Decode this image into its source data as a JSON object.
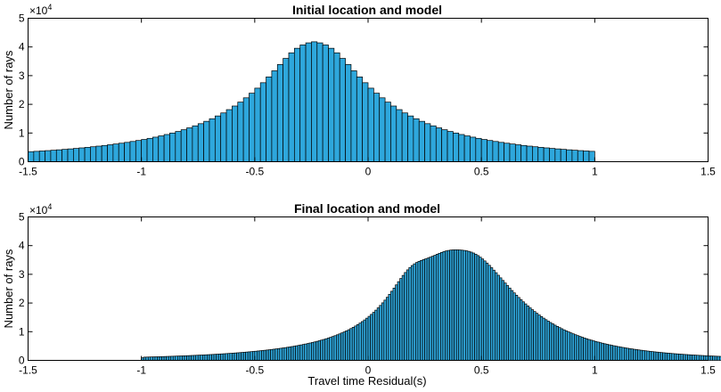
{
  "chart_data": [
    {
      "type": "bar",
      "title": "Initial location and model",
      "xlabel": "",
      "ylabel": "Number of rays",
      "y_exponent_label": "×10",
      "y_exponent_power": "4",
      "xlim": [
        -1.5,
        1.5
      ],
      "ylim": [
        0,
        50000
      ],
      "xticks": [
        "-1.5",
        "-1",
        "-0.5",
        "0",
        "0.5",
        "1",
        "1.5"
      ],
      "yticks": [
        "0",
        "1",
        "2",
        "3",
        "4",
        "5"
      ],
      "bar_color": "#2ea7dc",
      "bin_width": 0.025,
      "x_start": -1.5,
      "values": [
        3500,
        3616,
        3738,
        3866,
        4000,
        4146,
        4300,
        4463,
        4635,
        4817,
        5010,
        5214,
        5431,
        5661,
        5906,
        6166,
        6444,
        6739,
        7055,
        7393,
        7754,
        8141,
        8556,
        9002,
        9481,
        9996,
        10552,
        11152,
        11800,
        12500,
        13259,
        14082,
        14975,
        15947,
        17004,
        18156,
        19411,
        20779,
        22268,
        23887,
        25641,
        27534,
        29557,
        31692,
        33880,
        36014,
        37952,
        39545,
        40703,
        41430,
        41800,
        41430,
        40703,
        39545,
        37952,
        36014,
        33880,
        31692,
        29557,
        27534,
        25641,
        23887,
        22268,
        20779,
        19411,
        18156,
        17004,
        15947,
        14975,
        14082,
        13259,
        12500,
        11800,
        11152,
        10552,
        9996,
        9481,
        9002,
        8556,
        8141,
        7754,
        7393,
        7055,
        6739,
        6444,
        6166,
        5906,
        5661,
        5431,
        5214,
        5010,
        4817,
        4635,
        4463,
        4300,
        4146,
        4000,
        3866,
        3738,
        3616
      ]
    },
    {
      "type": "bar",
      "title": "Final location and model",
      "xlabel": "Travel time Residual(s)",
      "ylabel": "Number of rays",
      "y_exponent_label": "×10",
      "y_exponent_power": "4",
      "xlim": [
        -1.5,
        1.5
      ],
      "ylim": [
        0,
        50000
      ],
      "xticks": [
        "-1.5",
        "-1",
        "-0.5",
        "0",
        "0.5",
        "1",
        "1.5"
      ],
      "yticks": [
        "0",
        "1",
        "2",
        "3",
        "4",
        "5"
      ],
      "bar_color": "#2ea7dc",
      "bin_width": 0.01,
      "x_start": -1.5,
      "values": [
        0,
        0,
        0,
        0,
        0,
        0,
        0,
        0,
        0,
        0,
        0,
        0,
        0,
        0,
        0,
        0,
        0,
        0,
        0,
        0,
        0,
        0,
        0,
        0,
        0,
        0,
        0,
        0,
        0,
        0,
        0,
        0,
        0,
        0,
        0,
        0,
        0,
        0,
        0,
        0,
        0,
        0,
        0,
        0,
        0,
        0,
        0,
        0,
        0,
        0,
        900,
        1131,
        1152,
        1174,
        1197,
        1219,
        1243,
        1267,
        1292,
        1317,
        1343,
        1370,
        1397,
        1425,
        1454,
        1483,
        1513,
        1543,
        1575,
        1607,
        1641,
        1675,
        1710,
        1745,
        1782,
        1820,
        1858,
        1898,
        1939,
        1981,
        2024,
        2068,
        2113,
        2160,
        2208,
        2257,
        2308,
        2360,
        2414,
        2469,
        2525,
        2584,
        2644,
        2706,
        2769,
        2835,
        2903,
        2972,
        3044,
        3118,
        3194,
        3273,
        3354,
        3438,
        3524,
        3613,
        3705,
        3800,
        3898,
        4000,
        4105,
        4214,
        4326,
        4443,
        4563,
        4689,
        4818,
        4953,
        5093,
        5239,
        5390,
        5547,
        5710,
        5880,
        6057,
        6242,
        6434,
        6635,
        6845,
        7064,
        7293,
        7533,
        7784,
        8047,
        8323,
        8612,
        8916,
        9235,
        9570,
        9923,
        10295,
        10686,
        11098,
        11533,
        11992,
        12476,
        12989,
        13531,
        14104,
        14710,
        15352,
        16031,
        16751,
        17512,
        18316,
        19166,
        20062,
        21005,
        21993,
        23025,
        24095,
        25197,
        26319,
        27445,
        28555,
        29626,
        30633,
        31553,
        32367,
        33066,
        33649,
        34126,
        34515,
        34841,
        35128,
        35402,
        35681,
        35980,
        36301,
        36641,
        36988,
        37326,
        37640,
        37916,
        38145,
        38321,
        38444,
        38515,
        38541,
        38528,
        38485,
        38417,
        38322,
        38186,
        37998,
        37745,
        37418,
        37014,
        36531,
        35975,
        35351,
        34665,
        33925,
        33136,
        32307,
        31448,
        30566,
        29670,
        28767,
        27865,
        26969,
        26084,
        25214,
        24361,
        23528,
        22716,
        21926,
        21157,
        20412,
        19689,
        18990,
        18313,
        17659,
        17028,
        16418,
        15830,
        15264,
        14718,
        14193,
        13688,
        13201,
        12733,
        12283,
        11851,
        11435,
        11035,
        10651,
        10281,
        9926,
        9584,
        9256,
        8940,
        8637,
        8346,
        8066,
        7796,
        7537,
        7288,
        7048,
        6818,
        6596,
        6382,
        6177,
        5979,
        5789,
        5606,
        5429,
        5259,
        5096,
        4938,
        4786,
        4640,
        4499,
        4363,
        4232,
        4105,
        3983,
        3865,
        3752,
        3642,
        3536,
        3433,
        3334,
        3239,
        3146,
        3057,
        2971,
        2888,
        2807,
        2729,
        2654,
        2581,
        2511,
        2443,
        2377,
        2313,
        2251,
        2192,
        2134,
        2078,
        2024,
        1971,
        1920,
        1871,
        1823,
        1777,
        1732,
        1689,
        1647,
        1606,
        1566,
        1528,
        1491,
        1455,
        1420,
        1386,
        1353,
        1321,
        1290,
        1259,
        1230,
        1202,
        1174,
        1147,
        1122,
        1096,
        1072,
        1048,
        1025,
        1003,
        981,
        960,
        939,
        919,
        900,
        881,
        863,
        845,
        827,
        811,
        794,
        778,
        763,
        748,
        734,
        719,
        706,
        692,
        679,
        667,
        654,
        642,
        631,
        619,
        609,
        598,
        588,
        578,
        568,
        559,
        550,
        0,
        0,
        0,
        0,
        0,
        0,
        0,
        0,
        0,
        0,
        0,
        0,
        0,
        0,
        0,
        0,
        0,
        0,
        0,
        0,
        0,
        0,
        0,
        0,
        0,
        0,
        0,
        0,
        0,
        0,
        0,
        0,
        0,
        0,
        0,
        0,
        0,
        0,
        0,
        0,
        0,
        0,
        0,
        0,
        0,
        0,
        0,
        0,
        0
      ]
    }
  ]
}
